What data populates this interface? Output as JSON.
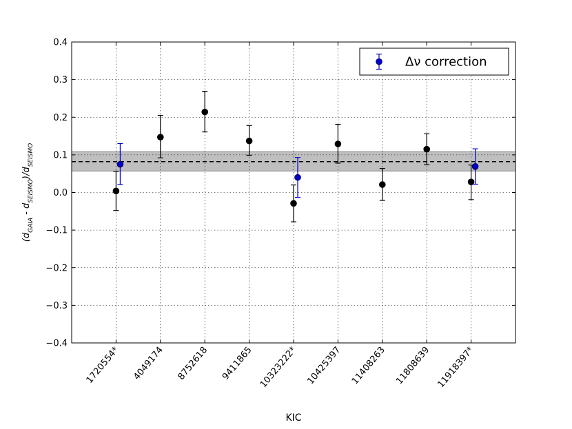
{
  "chart_data": {
    "type": "scatter",
    "xlabel": "KIC",
    "ylabel": "(d_GAIA - d_SEISMO)/d_SEISMO",
    "ylabel_parts": {
      "open": "(d",
      "sub1": "GAIA",
      "mid": " - d",
      "sub2": "SEISMO",
      "close": ")/d",
      "sub3": "SEISMO"
    },
    "categories": [
      "1720554*",
      "4049174",
      "8752618",
      "9411865",
      "10323222*",
      "10425397",
      "11408263",
      "11808639",
      "11918397*"
    ],
    "ylim": [
      -0.4,
      0.4
    ],
    "yticks": [
      -0.4,
      -0.3,
      -0.2,
      -0.1,
      0.0,
      0.1,
      0.2,
      0.3,
      0.4
    ],
    "ytick_labels": [
      "−0.4",
      "−0.3",
      "−0.2",
      "−0.1",
      "0.0",
      "0.1",
      "0.2",
      "0.3",
      "0.4"
    ],
    "grid": true,
    "legend_position": "top-right",
    "mean_line": {
      "value": 0.082,
      "band": [
        0.057,
        0.108
      ],
      "style": "dashed"
    },
    "series": [
      {
        "color": "#000000",
        "points": [
          {
            "category": "1720554*",
            "y": 0.004,
            "err_low": 0.052,
            "err_high": 0.052
          },
          {
            "category": "4049174",
            "y": 0.147,
            "err_low": 0.055,
            "err_high": 0.058
          },
          {
            "category": "8752618",
            "y": 0.214,
            "err_low": 0.053,
            "err_high": 0.055
          },
          {
            "category": "9411865",
            "y": 0.137,
            "err_low": 0.038,
            "err_high": 0.041
          },
          {
            "category": "10323222*",
            "y": -0.029,
            "err_low": 0.049,
            "err_high": 0.049
          },
          {
            "category": "10425397",
            "y": 0.129,
            "err_low": 0.051,
            "err_high": 0.052
          },
          {
            "category": "11408263",
            "y": 0.021,
            "err_low": 0.042,
            "err_high": 0.043
          },
          {
            "category": "11808639",
            "y": 0.115,
            "err_low": 0.041,
            "err_high": 0.041
          },
          {
            "category": "11918397*",
            "y": 0.028,
            "err_low": 0.047,
            "err_high": 0.045
          }
        ]
      },
      {
        "name": "Δν correction",
        "color": "#0000cc",
        "points": [
          {
            "category": "1720554*",
            "y": 0.075,
            "err_low": 0.054,
            "err_high": 0.055
          },
          {
            "category": "10323222*",
            "y": 0.04,
            "err_low": 0.053,
            "err_high": 0.053
          },
          {
            "category": "11918397*",
            "y": 0.069,
            "err_low": 0.047,
            "err_high": 0.047
          }
        ]
      }
    ]
  }
}
